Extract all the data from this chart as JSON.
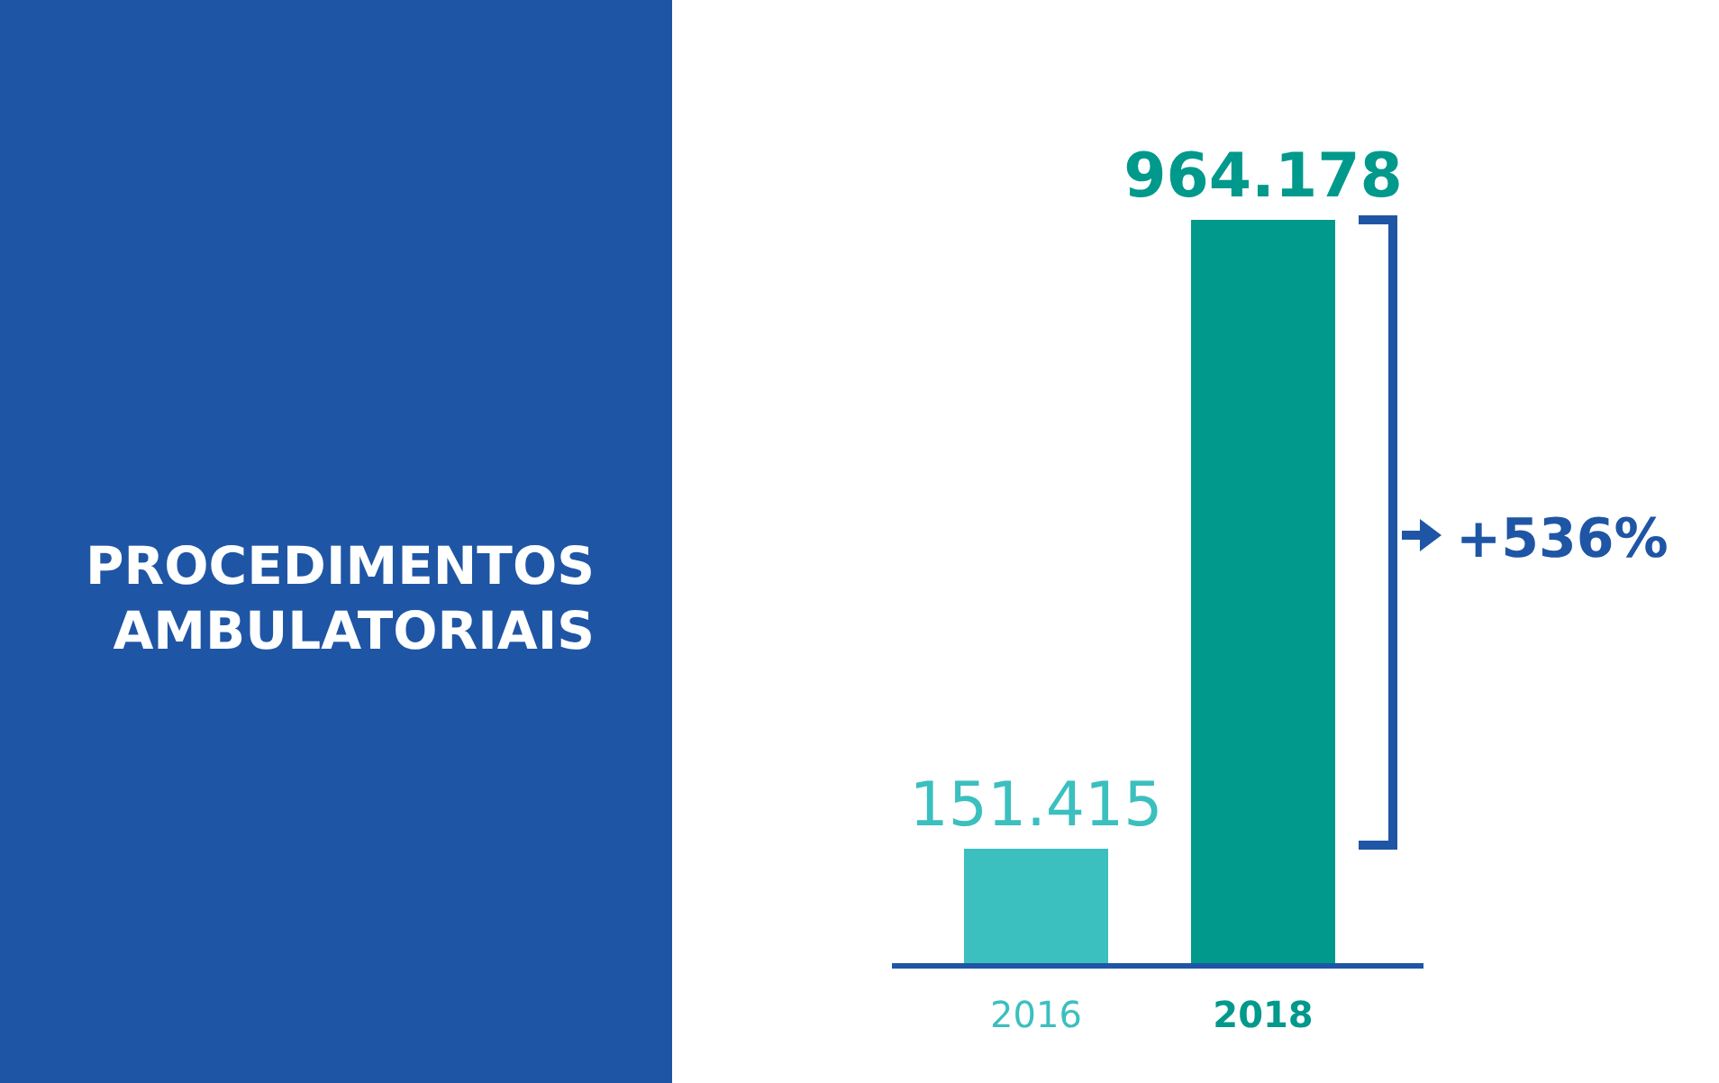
{
  "chart_data": {
    "type": "bar",
    "title": "PROCEDIMENTOS AMBULATORIAIS",
    "categories": [
      "2016",
      "2018"
    ],
    "values": [
      151415,
      964178
    ],
    "colors": [
      "#3bbfbf",
      "#00998c"
    ],
    "value_labels": [
      "151.415",
      "964.178"
    ],
    "annotations": [
      "+536%"
    ]
  }
}
